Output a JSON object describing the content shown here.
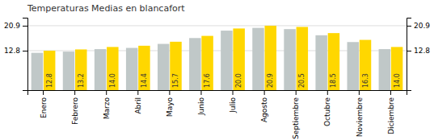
{
  "chart_data": {
    "type": "bar",
    "title": "Temperaturas Medias en blancafort",
    "categories": [
      "Enero",
      "Febrero",
      "Marzo",
      "Abril",
      "Mayo",
      "Junio",
      "Julio",
      "Agosto",
      "Septiembre",
      "Octubre",
      "Noviembre",
      "Diciembre"
    ],
    "series": [
      {
        "color": "#C0C8C8",
        "values": [
          12.1,
          12.5,
          13.3,
          13.7,
          15.0,
          16.9,
          19.3,
          20.2,
          19.8,
          17.8,
          15.6,
          13.3
        ]
      },
      {
        "color": "#FFD700",
        "values": [
          12.8,
          13.2,
          14.0,
          14.4,
          15.7,
          17.6,
          20.0,
          20.9,
          20.5,
          18.5,
          16.3,
          14.0
        ],
        "data_labels": true,
        "value_labels": [
          "12.8",
          "13.2",
          "14.0",
          "14.4",
          "15.7",
          "17.6",
          "20.0",
          "20.9",
          "20.5",
          "18.5",
          "16.3",
          "14.0"
        ]
      }
    ],
    "ylim": [
      0,
      23.5
    ],
    "yticks": [
      12.8,
      20.9
    ],
    "y2lim": [
      0,
      23.5
    ],
    "y2ticks": [
      12.8,
      20.9
    ],
    "grid": true
  }
}
